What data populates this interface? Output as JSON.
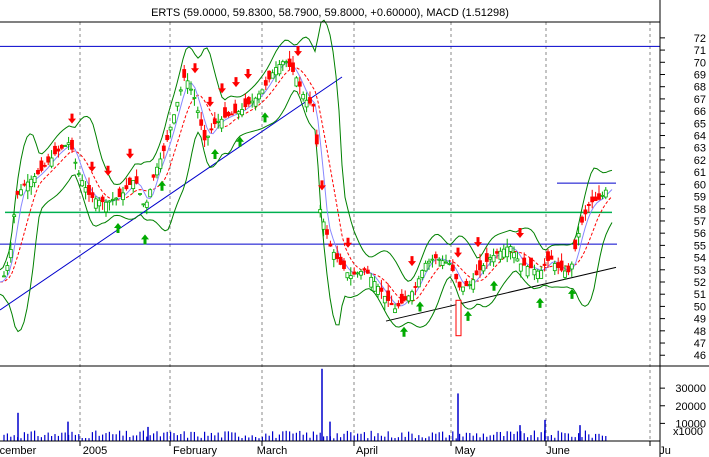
{
  "chart_data": {
    "type": "candlestick",
    "title": "ERTS (59.0000, 59.8300, 58.7900, 59.8000, +0.60000), MACD (1.51298)",
    "price_axis": {
      "ticks": [
        46,
        47,
        48,
        49,
        50,
        51,
        52,
        53,
        54,
        55,
        56,
        57,
        58,
        59,
        60,
        61,
        62,
        63,
        64,
        65,
        66,
        67,
        68,
        69,
        70,
        71,
        72
      ],
      "range": [
        45.2,
        73.3
      ]
    },
    "volume_axis": {
      "ticks": [
        10000,
        20000,
        30000
      ],
      "tick_labels": [
        "10000",
        "20000",
        "30000"
      ],
      "unit_label": "x1000",
      "range": [
        0,
        42000
      ]
    },
    "x_labels": [
      "cember",
      "2005",
      "February",
      "March",
      "April",
      "May",
      "June",
      "Ju"
    ],
    "colors": {
      "up": "#00aa00",
      "down": "#ff0000",
      "bollinger": "#008000",
      "moving_average": "#ff0000",
      "sma_short": "#8888ff",
      "trendline": "#0000cc",
      "support": "#00b050",
      "support_line": "#000000",
      "volume": "#0000cc",
      "grid": "#888888"
    },
    "horizontal_levels": [
      {
        "value": 71.3,
        "color": "#0000cc"
      },
      {
        "value": 57.7,
        "color": "#00b050"
      },
      {
        "value": 55.1,
        "color": "#0000cc"
      },
      {
        "value": 60.1,
        "color": "#0000cc"
      }
    ],
    "signal_arrows": {
      "sell": [
        64,
        60,
        60,
        61,
        67,
        67,
        67,
        67,
        67,
        69,
        58,
        51,
        50,
        55,
        55,
        53
      ],
      "buy": [
        58,
        58,
        58,
        61,
        62,
        62,
        50,
        49,
        53,
        53,
        52,
        52
      ]
    }
  }
}
